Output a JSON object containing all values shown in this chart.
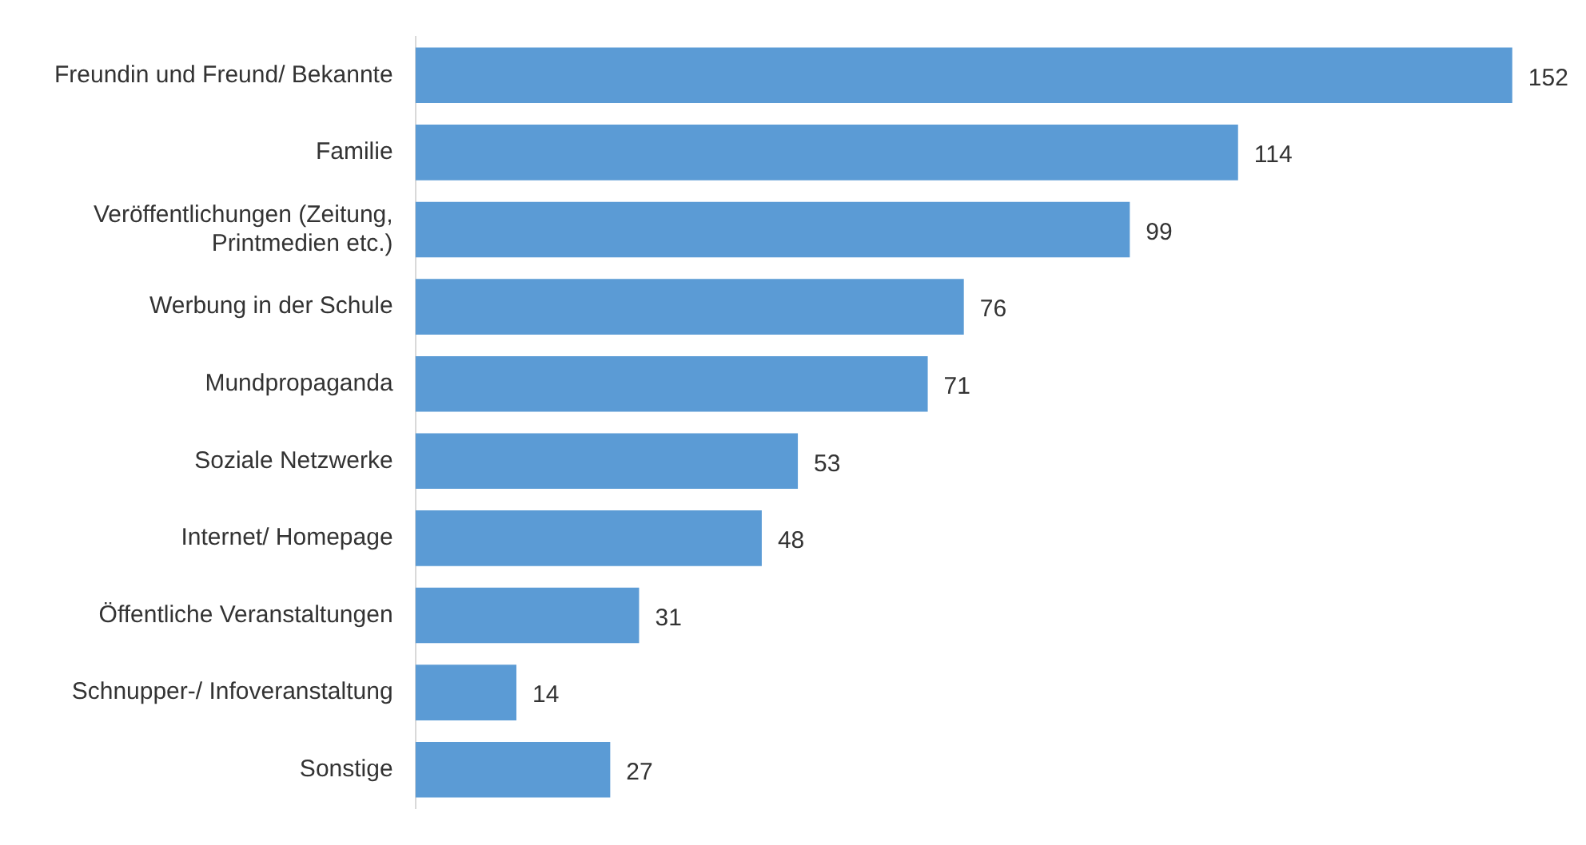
{
  "chart_data": {
    "type": "bar",
    "orientation": "horizontal",
    "categories": [
      "Freundin und Freund/ Bekannte",
      "Familie",
      "Veröffentlichungen (Zeitung, Printmedien etc.)",
      "Werbung in der Schule",
      "Mundpropaganda",
      "Soziale Netzwerke",
      "Internet/ Homepage",
      "Öffentliche Veranstaltungen",
      "Schnupper-/ Infoveranstaltung",
      "Sonstige"
    ],
    "values": [
      152,
      114,
      99,
      76,
      71,
      53,
      48,
      31,
      14,
      27
    ],
    "color": "#5b9bd5",
    "data_labels": true,
    "tick_labels": "y"
  }
}
